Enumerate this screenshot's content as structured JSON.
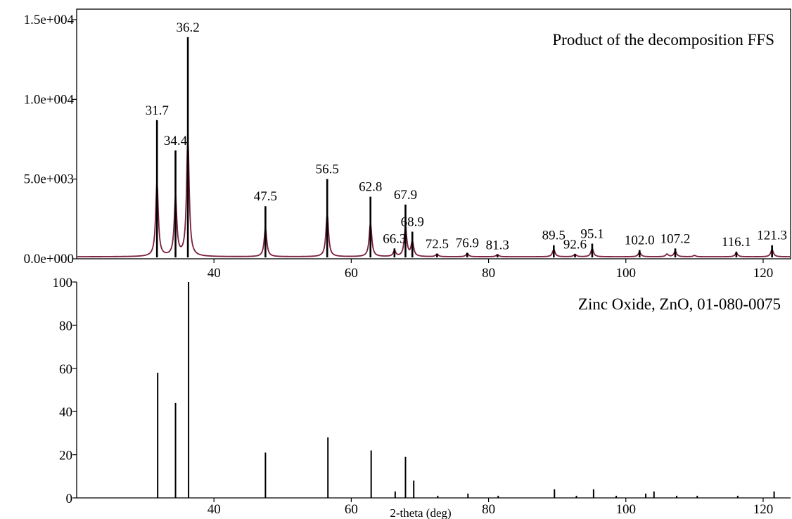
{
  "chart_data": [
    {
      "type": "line",
      "title": "Product of the decomposition FFS",
      "xlim": [
        20,
        124
      ],
      "ylim": [
        0,
        15000
      ],
      "x_ticks": [
        40,
        60,
        80,
        100,
        120
      ],
      "x_tick_labels": [
        "40",
        "60",
        "80",
        "100",
        "120"
      ],
      "y_ticks": [
        0,
        5000,
        10000,
        15000
      ],
      "y_tick_labels": [
        "0.0e+000",
        "5.0e+003",
        "1.0e+004",
        "1.5e+004"
      ],
      "grid": false,
      "colors": {
        "profile": "#7a1f3d",
        "sticks": "#000000"
      },
      "peaks": [
        {
          "x": 31.7,
          "y": 8700,
          "label": "31.7"
        },
        {
          "x": 34.4,
          "y": 6800,
          "label": "34.4"
        },
        {
          "x": 36.2,
          "y": 13900,
          "label": "36.2"
        },
        {
          "x": 47.5,
          "y": 3300,
          "label": "47.5"
        },
        {
          "x": 56.5,
          "y": 5000,
          "label": "56.5"
        },
        {
          "x": 62.8,
          "y": 3900,
          "label": "62.8"
        },
        {
          "x": 66.3,
          "y": 650,
          "label": "66.3"
        },
        {
          "x": 67.9,
          "y": 3400,
          "label": "67.9"
        },
        {
          "x": 68.9,
          "y": 1700,
          "label": "68.9"
        },
        {
          "x": 72.5,
          "y": 300,
          "label": "72.5"
        },
        {
          "x": 76.9,
          "y": 380,
          "label": "76.9"
        },
        {
          "x": 81.3,
          "y": 250,
          "label": "81.3"
        },
        {
          "x": 89.5,
          "y": 850,
          "label": "89.5"
        },
        {
          "x": 92.6,
          "y": 280,
          "label": "92.6"
        },
        {
          "x": 95.1,
          "y": 950,
          "label": "95.1"
        },
        {
          "x": 102.0,
          "y": 550,
          "label": "102.0"
        },
        {
          "x": 107.2,
          "y": 650,
          "label": "107.2"
        },
        {
          "x": 116.1,
          "y": 450,
          "label": "116.1"
        },
        {
          "x": 121.3,
          "y": 850,
          "label": "121.3"
        }
      ],
      "minor_peaks": [
        {
          "x": 106.0,
          "y": 300
        },
        {
          "x": 110.0,
          "y": 150
        }
      ]
    },
    {
      "type": "bar",
      "title": "Zinc Oxide, ZnO, 01-080-0075",
      "xlabel": "2-theta (deg)",
      "xlim": [
        20,
        124
      ],
      "ylim": [
        0,
        100
      ],
      "x_ticks": [
        40,
        60,
        80,
        100,
        120
      ],
      "x_tick_labels": [
        "40",
        "60",
        "80",
        "100",
        "120"
      ],
      "y_ticks": [
        0,
        20,
        40,
        60,
        80,
        100
      ],
      "y_tick_labels": [
        "0",
        "20",
        "40",
        "60",
        "80",
        "100"
      ],
      "grid": false,
      "x": [
        31.8,
        34.4,
        36.3,
        47.5,
        56.6,
        62.9,
        66.4,
        67.9,
        69.1,
        72.6,
        77.0,
        81.4,
        89.6,
        92.8,
        95.3,
        98.6,
        102.9,
        104.1,
        107.4,
        110.4,
        116.3,
        121.6
      ],
      "values": [
        58,
        44,
        100,
        21,
        28,
        22,
        3,
        19,
        8,
        1,
        2,
        1,
        4,
        1,
        4,
        1,
        2,
        3,
        1,
        1,
        1,
        3
      ]
    }
  ]
}
